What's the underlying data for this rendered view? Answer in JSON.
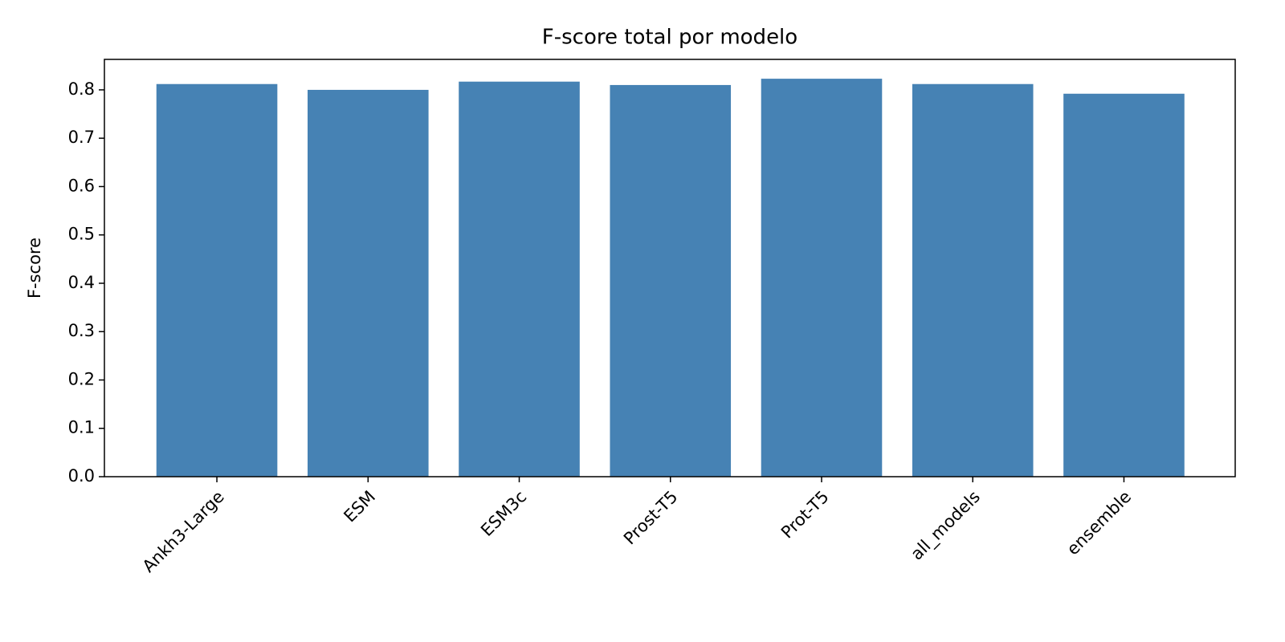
{
  "chart_data": {
    "type": "bar",
    "title": "F-score total por modelo",
    "y_label": "F-score",
    "categories": [
      "Ankh3-Large",
      "ESM",
      "ESM3c",
      "Prost-T5",
      "Prot-T5",
      "all_models",
      "ensemble"
    ],
    "values": [
      0.812,
      0.8,
      0.817,
      0.81,
      0.823,
      0.812,
      0.792
    ],
    "color": "#4682b4",
    "ylim": [
      0,
      0.863
    ],
    "yticks": [
      {
        "value": 0,
        "label": "0.0"
      },
      0.1,
      0.2,
      0.3,
      0.4,
      0.5,
      0.6,
      0.7,
      0.8
    ],
    "grid": false
  }
}
